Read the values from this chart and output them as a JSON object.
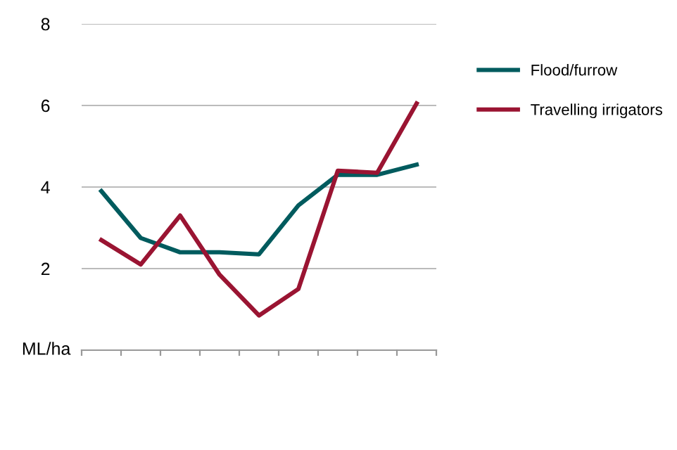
{
  "chart_data": {
    "type": "line",
    "ylabel": "ML/ha",
    "categories": [
      null,
      null,
      null,
      null,
      null,
      null,
      null,
      null,
      null
    ],
    "series": [
      {
        "name": "Flood/furrow",
        "color": "#005b5e",
        "values": [
          3.9,
          2.75,
          2.4,
          2.4,
          2.35,
          3.55,
          4.3,
          4.3,
          4.55
        ]
      },
      {
        "name": "Travelling irrigators",
        "color": "#9a1432",
        "values": [
          2.7,
          2.1,
          3.3,
          1.85,
          0.85,
          1.5,
          4.4,
          4.35,
          6.05
        ]
      }
    ],
    "ylim": [
      0,
      8
    ],
    "yticks": [
      {
        "value": 0,
        "label": null
      },
      2,
      4,
      6,
      8
    ],
    "grid": "y",
    "legend": "right",
    "marker": "none",
    "line_style": "solid"
  }
}
